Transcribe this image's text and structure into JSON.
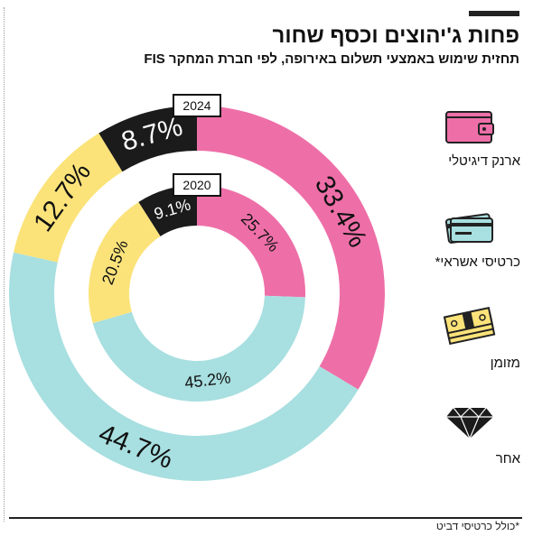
{
  "title": "פחות ג'יהוצים וכסף שחור",
  "subtitle": "תחזית שימוש באמצעי תשלום באירופה, לפי חברת המחקר FIS",
  "footnote": "*כולל כרטיסי דביט",
  "colors": {
    "digital_wallet": "#ee6fa8",
    "credit_cards": "#a8dfe0",
    "cash": "#fbe37a",
    "other": "#1b1b1b"
  },
  "legend": [
    {
      "label": "ארנק דיגיטלי",
      "icon": "wallet-icon"
    },
    {
      "label": "כרטיסי אשראי*",
      "icon": "credit-card-icon"
    },
    {
      "label": "מזומן",
      "icon": "cash-stack-icon"
    },
    {
      "label": "אחר",
      "icon": "diamond-icon"
    }
  ],
  "chart_data": {
    "type": "pie",
    "subtype": "nested-donut",
    "categories": [
      "ארנק דיגיטלי",
      "כרטיסי אשראי*",
      "מזומן",
      "אחר"
    ],
    "series": [
      {
        "name": "2024",
        "ring": "outer",
        "values": [
          33.4,
          44.7,
          12.7,
          8.7
        ],
        "labels": [
          "33.4%",
          "44.7%",
          "12.7%",
          "8.7%"
        ]
      },
      {
        "name": "2020",
        "ring": "inner",
        "values": [
          25.7,
          45.2,
          20.5,
          9.1
        ],
        "labels": [
          "25.7%",
          "45.2%",
          "20.5%",
          "9.1%"
        ]
      }
    ]
  }
}
